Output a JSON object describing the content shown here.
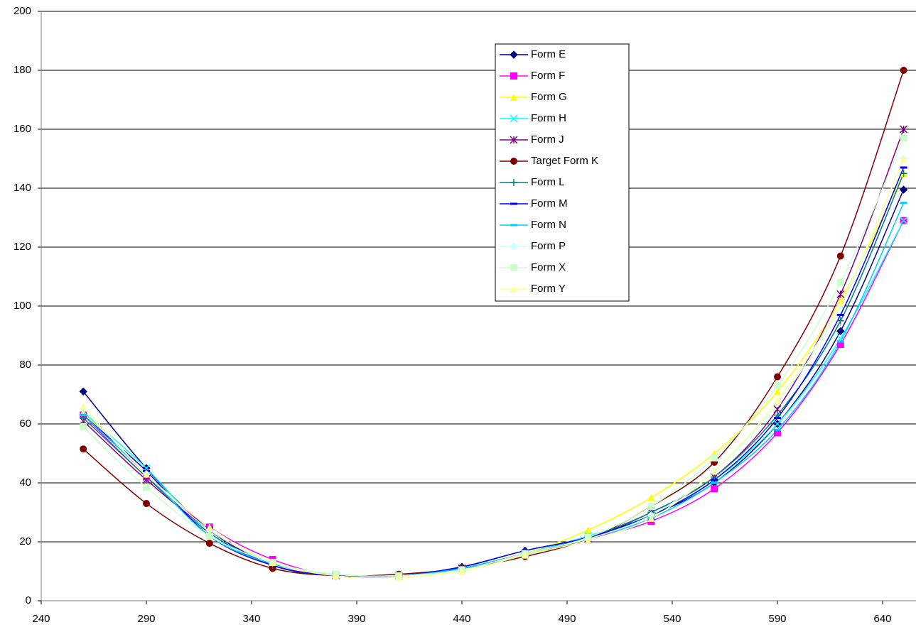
{
  "chart_data": {
    "type": "line",
    "x": [
      260,
      290,
      320,
      350,
      380,
      410,
      440,
      470,
      500,
      530,
      560,
      590,
      620,
      650
    ],
    "xlim": [
      240,
      652
    ],
    "xticks": [
      240,
      290,
      340,
      390,
      440,
      490,
      540,
      590,
      640
    ],
    "ylim": [
      0,
      200
    ],
    "yticks": [
      0,
      20,
      40,
      60,
      80,
      100,
      120,
      140,
      160,
      180,
      200
    ],
    "grid": true,
    "smooth": true,
    "legend": "top-right",
    "series": [
      {
        "name": "Form E",
        "color": "#000080",
        "marker": "diamond",
        "values": [
          71,
          45,
          24,
          12,
          8.5,
          8.5,
          11.5,
          17,
          21.5,
          29,
          40,
          60,
          91.5,
          139.5
        ]
      },
      {
        "name": "Form F",
        "color": "#ff00ff",
        "marker": "square",
        "values": [
          63,
          42,
          25,
          14,
          8.5,
          8.5,
          11,
          16,
          21,
          27,
          38,
          57,
          87,
          129
        ]
      },
      {
        "name": "Form G",
        "color": "#ffff00",
        "marker": "triangle",
        "values": [
          64,
          43,
          24,
          13,
          8.5,
          8.5,
          11,
          16,
          24,
          35,
          50,
          71,
          102,
          145
        ]
      },
      {
        "name": "Form H",
        "color": "#00ffff",
        "marker": "x",
        "values": [
          64,
          45,
          23,
          13,
          9,
          8.5,
          11,
          16,
          22,
          29,
          41,
          60,
          89,
          129
        ]
      },
      {
        "name": "Form J",
        "color": "#800080",
        "marker": "star",
        "values": [
          61,
          41,
          24,
          12,
          8.5,
          8.5,
          11,
          16,
          21,
          30,
          42,
          65,
          104,
          160
        ]
      },
      {
        "name": "Target Form K",
        "color": "#800000",
        "marker": "circle",
        "values": [
          51.5,
          33,
          19.5,
          11,
          8.5,
          9,
          11,
          15,
          21,
          32,
          47,
          76,
          117,
          180
        ]
      },
      {
        "name": "Form L",
        "color": "#008080",
        "marker": "plus",
        "values": [
          62,
          42,
          23,
          12,
          8.5,
          8.5,
          11,
          16,
          21.5,
          30,
          42,
          63,
          95,
          145
        ]
      },
      {
        "name": "Form M",
        "color": "#0000ff",
        "marker": "dash",
        "values": [
          63,
          44,
          22,
          12,
          8.5,
          8.5,
          11.5,
          17,
          21.5,
          29,
          41,
          62,
          97,
          147
        ]
      },
      {
        "name": "Form N",
        "color": "#00ccff",
        "marker": "dash",
        "values": [
          63,
          43,
          22,
          12.5,
          9,
          8.5,
          11,
          16,
          21,
          28,
          40,
          58,
          88,
          135
        ]
      },
      {
        "name": "Form P",
        "color": "#ccffff",
        "marker": "diamond",
        "values": [
          65,
          43,
          24,
          13,
          9,
          8.5,
          10.5,
          16,
          21,
          29,
          44,
          67,
          100,
          150
        ]
      },
      {
        "name": "Form X",
        "color": "#ccffcc",
        "marker": "square",
        "values": [
          59,
          38.5,
          22,
          13,
          9,
          8.5,
          10.5,
          16,
          21.5,
          32,
          48.5,
          73,
          108,
          157
        ]
      },
      {
        "name": "Form Y",
        "color": "#ffff99",
        "marker": "triangle",
        "values": [
          66,
          43,
          25,
          13,
          8.5,
          8,
          10,
          15.5,
          20.5,
          28,
          44,
          68,
          101,
          150
        ]
      }
    ]
  }
}
